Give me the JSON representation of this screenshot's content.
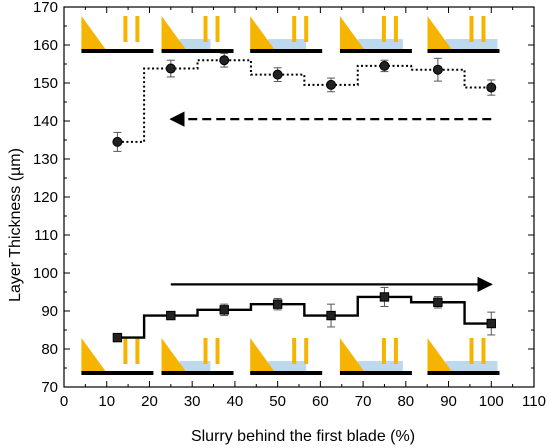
{
  "chart_data": {
    "type": "line",
    "xlabel": "Slurry behind the first blade (%)",
    "ylabel": "Layer Thickness (µm)",
    "xlim": [
      0,
      110
    ],
    "ylim": [
      70,
      170
    ],
    "xticks": [
      0,
      10,
      20,
      30,
      40,
      50,
      60,
      70,
      80,
      90,
      100,
      110
    ],
    "yticks": [
      70,
      80,
      90,
      100,
      110,
      120,
      130,
      140,
      150,
      160,
      170
    ],
    "grid": false,
    "series": [
      {
        "marker": "circle",
        "line_style": "dotted-step",
        "x": [
          12.5,
          25,
          37.5,
          50,
          62.5,
          75,
          87.5,
          100
        ],
        "y": [
          134.5,
          153.8,
          156.0,
          152.2,
          149.5,
          154.5,
          153.5,
          148.8
        ],
        "err": [
          2.5,
          2.2,
          1.8,
          1.8,
          1.8,
          1.5,
          3.0,
          2.0
        ]
      },
      {
        "marker": "square",
        "line_style": "solid-step",
        "x": [
          12.5,
          25,
          37.5,
          50,
          62.5,
          75,
          87.5,
          100
        ],
        "y": [
          83.0,
          88.8,
          90.3,
          91.8,
          88.8,
          93.7,
          92.3,
          86.7
        ],
        "err": [
          0.5,
          1.0,
          1.5,
          1.5,
          3.0,
          2.5,
          1.5,
          3.0
        ]
      }
    ],
    "annotations": [
      {
        "type": "arrow",
        "style": "dashed",
        "direction": "left",
        "x_from": 100,
        "x_to": 25,
        "y": 140.5
      },
      {
        "type": "arrow",
        "style": "solid",
        "direction": "right",
        "x_from": 25,
        "x_to": 100,
        "y": 97
      }
    ],
    "insets": {
      "type": "blade-schematic",
      "fill_fraction": [
        0,
        0.25,
        0.5,
        0.75,
        1.0
      ],
      "colors": {
        "blade": "#f5b400",
        "slurry": "#bcd9f0",
        "substrate": "#000000"
      }
    }
  }
}
